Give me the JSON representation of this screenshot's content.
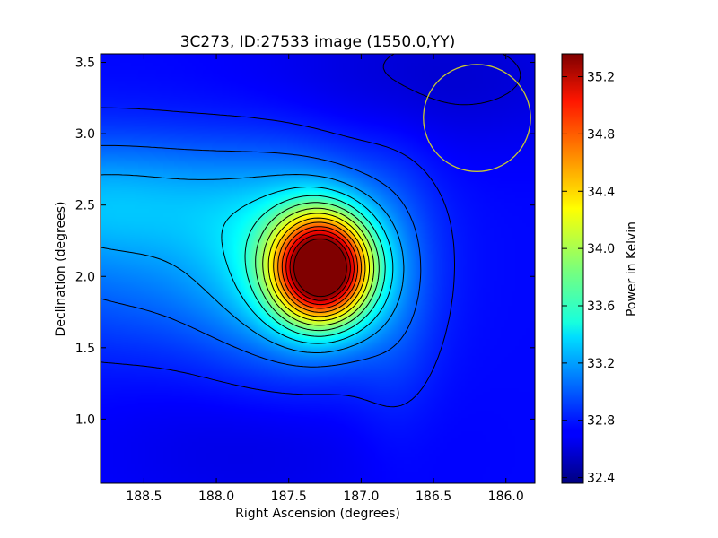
{
  "chart_data": {
    "type": "heatmap",
    "title": "3C273, ID:27533 image (1550.0,YY)",
    "xlabel": "Right Ascension (degrees)",
    "ylabel": "Declination (degrees)",
    "colorbar_label": "Power in Kelvin",
    "colormap": "jet",
    "xlim": [
      188.8,
      185.8
    ],
    "ylim": [
      0.55,
      3.56
    ],
    "x_inverted": true,
    "x_ticks": [
      188.5,
      188.0,
      187.5,
      187.0,
      186.5,
      186.0
    ],
    "x_tick_labels": [
      "188.5",
      "188.0",
      "187.5",
      "187.0",
      "186.5",
      "186.0"
    ],
    "y_ticks": [
      1.0,
      1.5,
      2.0,
      2.5,
      3.0,
      3.5
    ],
    "y_tick_labels": [
      "1.0",
      "1.5",
      "2.0",
      "2.5",
      "3.0",
      "3.5"
    ],
    "colorbar_range": [
      32.36,
      35.36
    ],
    "colorbar_ticks": [
      32.4,
      32.8,
      33.2,
      33.6,
      34.0,
      34.4,
      34.8,
      35.2
    ],
    "colorbar_tick_labels": [
      "32.4",
      "32.8",
      "33.2",
      "33.6",
      "34.0",
      "34.4",
      "34.8",
      "35.2"
    ],
    "peak": {
      "ra": 187.25,
      "dec": 2.03,
      "value": 35.35
    },
    "background_level": 32.75,
    "contour_color": "#000000",
    "beam_circle": {
      "ra": 186.2,
      "dec": 3.11,
      "radius_deg": 0.37,
      "color": "#c8c832"
    },
    "grid": false
  }
}
